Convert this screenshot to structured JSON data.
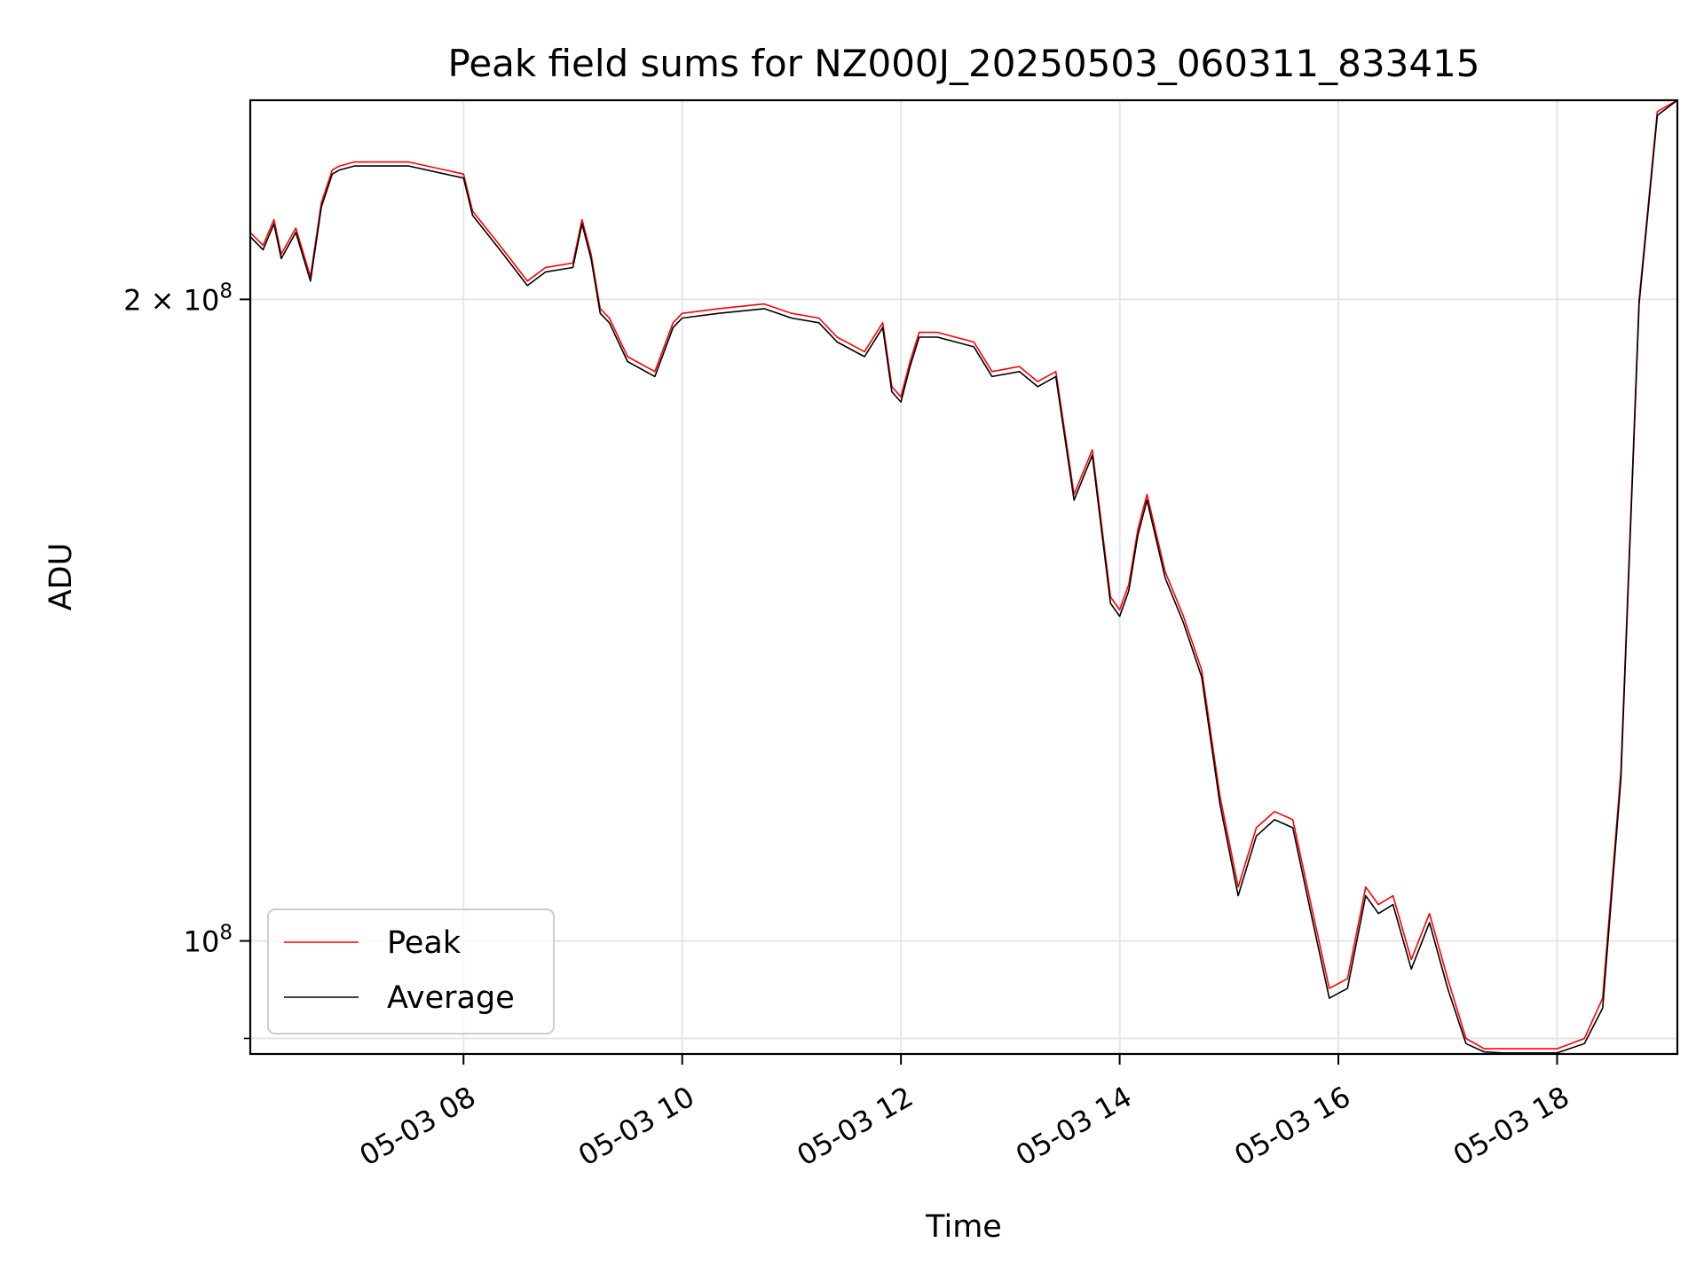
{
  "chart_data": {
    "type": "line",
    "title": "Peak field sums for NZ000J_20250503_060311_833415",
    "xlabel": "Time",
    "ylabel": "ADU",
    "x_unit": "datetime 2025-05-03",
    "xlim": [
      "2025-05-03 06:03",
      "2025-05-03 19:06"
    ],
    "ylim": [
      88500000,
      248000000
    ],
    "y_scale": "log",
    "grid": true,
    "legend_position": "lower-left",
    "x_ticks": [
      {
        "value": "2025-05-03 08:00",
        "label": "05-03 08"
      },
      {
        "value": "2025-05-03 10:00",
        "label": "05-03 10"
      },
      {
        "value": "2025-05-03 12:00",
        "label": "05-03 12"
      },
      {
        "value": "2025-05-03 14:00",
        "label": "05-03 14"
      },
      {
        "value": "2025-05-03 16:00",
        "label": "05-03 16"
      },
      {
        "value": "2025-05-03 18:00",
        "label": "05-03 18"
      }
    ],
    "y_major_ticks": [
      {
        "value": 100000000,
        "label_base": "10",
        "label_exp": "8",
        "label_mantissa": ""
      },
      {
        "value": 200000000,
        "label_base": "10",
        "label_exp": "8",
        "label_mantissa": "2 × "
      }
    ],
    "y_minor_ticks": [
      90000000
    ],
    "series": [
      {
        "name": "Peak",
        "color": "#ff0000",
        "x": [
          "2025-05-03 06:03",
          "2025-05-03 06:10",
          "2025-05-03 06:16",
          "2025-05-03 06:20",
          "2025-05-03 06:28",
          "2025-05-03 06:36",
          "2025-05-03 06:42",
          "2025-05-03 06:48",
          "2025-05-03 06:52",
          "2025-05-03 07:00",
          "2025-05-03 07:30",
          "2025-05-03 07:50",
          "2025-05-03 08:00",
          "2025-05-03 08:05",
          "2025-05-03 08:20",
          "2025-05-03 08:35",
          "2025-05-03 08:45",
          "2025-05-03 09:00",
          "2025-05-03 09:05",
          "2025-05-03 09:10",
          "2025-05-03 09:15",
          "2025-05-03 09:20",
          "2025-05-03 09:30",
          "2025-05-03 09:45",
          "2025-05-03 09:55",
          "2025-05-03 10:00",
          "2025-05-03 10:20",
          "2025-05-03 10:45",
          "2025-05-03 11:00",
          "2025-05-03 11:15",
          "2025-05-03 11:25",
          "2025-05-03 11:40",
          "2025-05-03 11:50",
          "2025-05-03 11:55",
          "2025-05-03 12:00",
          "2025-05-03 12:05",
          "2025-05-03 12:10",
          "2025-05-03 12:20",
          "2025-05-03 12:40",
          "2025-05-03 12:50",
          "2025-05-03 13:05",
          "2025-05-03 13:15",
          "2025-05-03 13:25",
          "2025-05-03 13:35",
          "2025-05-03 13:45",
          "2025-05-03 13:55",
          "2025-05-03 14:00",
          "2025-05-03 14:05",
          "2025-05-03 14:10",
          "2025-05-03 14:15",
          "2025-05-03 14:25",
          "2025-05-03 14:35",
          "2025-05-03 14:45",
          "2025-05-03 14:55",
          "2025-05-03 15:05",
          "2025-05-03 15:15",
          "2025-05-03 15:25",
          "2025-05-03 15:35",
          "2025-05-03 15:45",
          "2025-05-03 15:55",
          "2025-05-03 16:05",
          "2025-05-03 16:15",
          "2025-05-03 16:22",
          "2025-05-03 16:30",
          "2025-05-03 16:40",
          "2025-05-03 16:50",
          "2025-05-03 17:00",
          "2025-05-03 17:10",
          "2025-05-03 17:20",
          "2025-05-03 17:30",
          "2025-05-03 17:45",
          "2025-05-03 18:00",
          "2025-05-03 18:15",
          "2025-05-03 18:25",
          "2025-05-03 18:35",
          "2025-05-03 18:45",
          "2025-05-03 18:55",
          "2025-05-03 19:06"
        ],
        "values": [
          215000000,
          212000000,
          218000000,
          210000000,
          216000000,
          205000000,
          222000000,
          230000000,
          231000000,
          232000000,
          232000000,
          230000000,
          229000000,
          220000000,
          212000000,
          204000000,
          207000000,
          208000000,
          218000000,
          210000000,
          198000000,
          196000000,
          188000000,
          185000000,
          195000000,
          197000000,
          198000000,
          199000000,
          197000000,
          196000000,
          192000000,
          189000000,
          195000000,
          182000000,
          180000000,
          187000000,
          193000000,
          193000000,
          191000000,
          185000000,
          186000000,
          183000000,
          185000000,
          162000000,
          170000000,
          145000000,
          143000000,
          147000000,
          156000000,
          162000000,
          149000000,
          142000000,
          134000000,
          117000000,
          106000000,
          113000000,
          115000000,
          114000000,
          104000000,
          95000000,
          96000000,
          106000000,
          104000000,
          105000000,
          98000000,
          103000000,
          96000000,
          90000000,
          89000000,
          89000000,
          89000000,
          89000000,
          90000000,
          94000000,
          120000000,
          200000000,
          245000000,
          248000000
        ]
      },
      {
        "name": "Average",
        "color": "#000000",
        "x": [
          "2025-05-03 06:03",
          "2025-05-03 06:10",
          "2025-05-03 06:16",
          "2025-05-03 06:20",
          "2025-05-03 06:28",
          "2025-05-03 06:36",
          "2025-05-03 06:42",
          "2025-05-03 06:48",
          "2025-05-03 06:52",
          "2025-05-03 07:00",
          "2025-05-03 07:30",
          "2025-05-03 07:50",
          "2025-05-03 08:00",
          "2025-05-03 08:05",
          "2025-05-03 08:20",
          "2025-05-03 08:35",
          "2025-05-03 08:45",
          "2025-05-03 09:00",
          "2025-05-03 09:05",
          "2025-05-03 09:10",
          "2025-05-03 09:15",
          "2025-05-03 09:20",
          "2025-05-03 09:30",
          "2025-05-03 09:45",
          "2025-05-03 09:55",
          "2025-05-03 10:00",
          "2025-05-03 10:20",
          "2025-05-03 10:45",
          "2025-05-03 11:00",
          "2025-05-03 11:15",
          "2025-05-03 11:25",
          "2025-05-03 11:40",
          "2025-05-03 11:50",
          "2025-05-03 11:55",
          "2025-05-03 12:00",
          "2025-05-03 12:05",
          "2025-05-03 12:10",
          "2025-05-03 12:20",
          "2025-05-03 12:40",
          "2025-05-03 12:50",
          "2025-05-03 13:05",
          "2025-05-03 13:15",
          "2025-05-03 13:25",
          "2025-05-03 13:35",
          "2025-05-03 13:45",
          "2025-05-03 13:55",
          "2025-05-03 14:00",
          "2025-05-03 14:05",
          "2025-05-03 14:10",
          "2025-05-03 14:15",
          "2025-05-03 14:25",
          "2025-05-03 14:35",
          "2025-05-03 14:45",
          "2025-05-03 14:55",
          "2025-05-03 15:05",
          "2025-05-03 15:15",
          "2025-05-03 15:25",
          "2025-05-03 15:35",
          "2025-05-03 15:45",
          "2025-05-03 15:55",
          "2025-05-03 16:05",
          "2025-05-03 16:15",
          "2025-05-03 16:22",
          "2025-05-03 16:30",
          "2025-05-03 16:40",
          "2025-05-03 16:50",
          "2025-05-03 17:00",
          "2025-05-03 17:10",
          "2025-05-03 17:20",
          "2025-05-03 17:30",
          "2025-05-03 17:45",
          "2025-05-03 18:00",
          "2025-05-03 18:15",
          "2025-05-03 18:25",
          "2025-05-03 18:35",
          "2025-05-03 18:45",
          "2025-05-03 18:55",
          "2025-05-03 19:06"
        ],
        "values": [
          214000000,
          211000000,
          217000000,
          209000000,
          215000000,
          204000000,
          221000000,
          229000000,
          230000000,
          231000000,
          231000000,
          229000000,
          228000000,
          219000000,
          211000000,
          203000000,
          206000000,
          207000000,
          217000000,
          209000000,
          197000000,
          195000000,
          187000000,
          184000000,
          194000000,
          196000000,
          197000000,
          198000000,
          196000000,
          195000000,
          191000000,
          188000000,
          194000000,
          181000000,
          179000000,
          186000000,
          192000000,
          192000000,
          190000000,
          184000000,
          185000000,
          182000000,
          184000000,
          161000000,
          169000000,
          144000000,
          142000000,
          146000000,
          155000000,
          161000000,
          148000000,
          141000000,
          133000000,
          116000000,
          105000000,
          112000000,
          114000000,
          113000000,
          103000000,
          94000000,
          95000000,
          105000000,
          103000000,
          104000000,
          97000000,
          102000000,
          95000000,
          89500000,
          88700000,
          88600000,
          88600000,
          88600000,
          89500000,
          93000000,
          119000000,
          199000000,
          244000000,
          248000000
        ]
      }
    ]
  }
}
